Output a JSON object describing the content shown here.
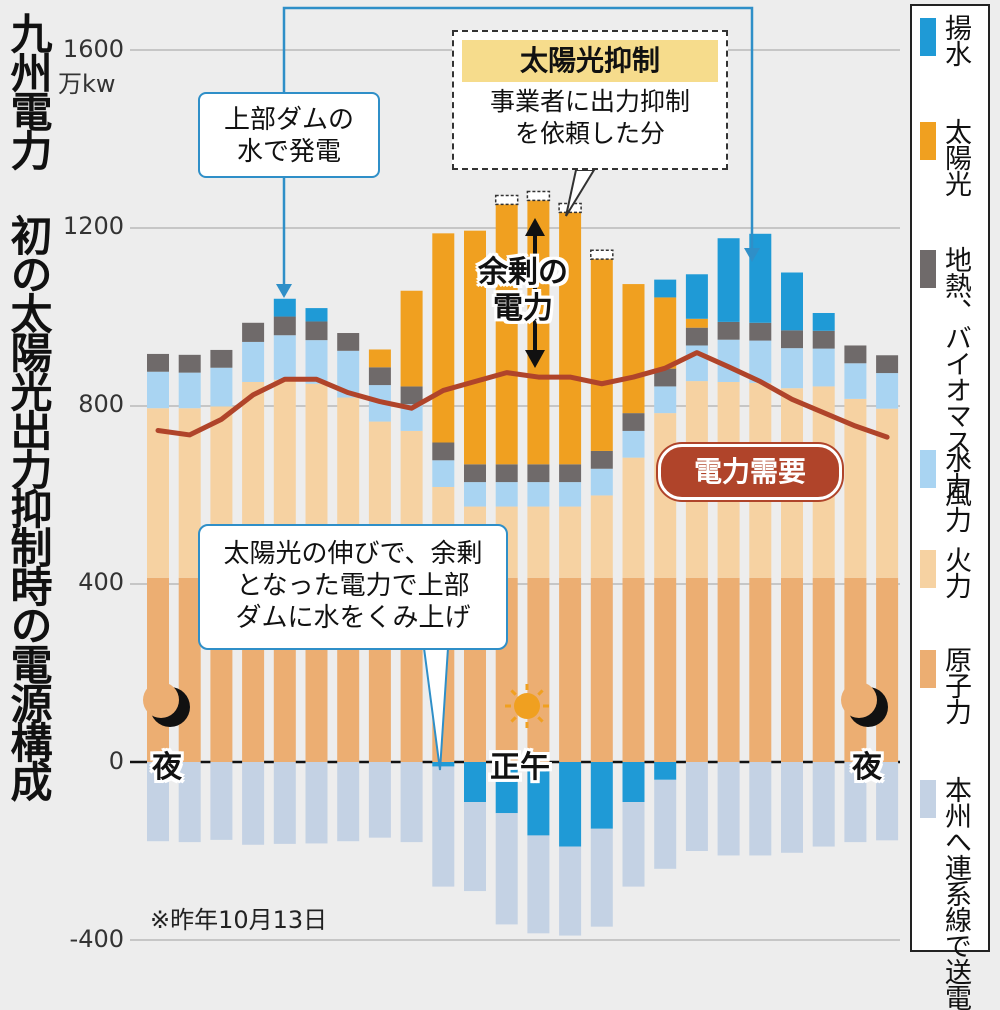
{
  "title": "九州電力 初の太陽光出力抑制時の電源構成",
  "y_unit": "万kw",
  "y_ticks": [
    "1600",
    "1200",
    "800",
    "400",
    "0",
    "-400"
  ],
  "legend": [
    {
      "label": "揚水",
      "color": "#1f9ad6"
    },
    {
      "label": "太陽光",
      "color": "#f0a020"
    },
    {
      "label": "地熱、バイオマス、風力",
      "color": "#6f6a6a"
    },
    {
      "label": "水力",
      "color": "#a9d4f2"
    },
    {
      "label": "火力",
      "color": "#f6d2a2"
    },
    {
      "label": "原子力",
      "color": "#ecae72"
    },
    {
      "label": "本州へ連系線で送電",
      "color": "#c4d2e4"
    }
  ],
  "annotations": {
    "pumped_top": "上部ダムの\n水で発電",
    "curtail_title": "太陽光抑制",
    "curtail_body": "事業者に出力抑制\nを依頼した分",
    "surplus": "余剰の\n電力",
    "demand": "電力需要",
    "pump_up": "太陽光の伸びで、余剰\nとなった電力で上部\nダムに水をくみ上げ",
    "night_left": "夜",
    "noon": "正午",
    "night_right": "夜",
    "note": "※昨年10月13日"
  },
  "chart_data": {
    "type": "bar",
    "subtype": "stacked",
    "x": [
      "0",
      "1",
      "2",
      "3",
      "4",
      "5",
      "6",
      "7",
      "8",
      "9",
      "10",
      "11",
      "12",
      "13",
      "14",
      "15",
      "16",
      "17",
      "18",
      "19",
      "20",
      "21",
      "22",
      "23"
    ],
    "ylim": [
      -400,
      1600
    ],
    "y_unit": "万kw",
    "series": [
      {
        "name": "原子力",
        "color": "#ecae72",
        "values": [
          414,
          414,
          414,
          414,
          414,
          414,
          414,
          414,
          414,
          414,
          414,
          414,
          414,
          414,
          414,
          414,
          414,
          414,
          414,
          414,
          414,
          414,
          414,
          414
        ]
      },
      {
        "name": "火力",
        "color": "#f6d2a2",
        "values": [
          381,
          381,
          385,
          440,
          445,
          436,
          405,
          351,
          330,
          204,
          160,
          160,
          160,
          160,
          185,
          270,
          370,
          442,
          440,
          438,
          426,
          430,
          402,
          380
        ]
      },
      {
        "name": "水力",
        "color": "#a9d4f2",
        "values": [
          82,
          80,
          87,
          90,
          100,
          98,
          105,
          82,
          60,
          60,
          55,
          55,
          55,
          55,
          60,
          60,
          60,
          80,
          95,
          95,
          90,
          85,
          80,
          80
        ]
      },
      {
        "name": "地熱、バイオマス、風力",
        "color": "#6f6a6a",
        "values": [
          40,
          40,
          40,
          43,
          42,
          42,
          40,
          40,
          40,
          40,
          40,
          40,
          40,
          40,
          40,
          40,
          40,
          40,
          40,
          40,
          40,
          40,
          40,
          40
        ]
      },
      {
        "name": "太陽光",
        "color": "#f0a020",
        "values": [
          0,
          0,
          0,
          0,
          0,
          0,
          0,
          40,
          215,
          470,
          525,
          584,
          593,
          566,
          431,
          290,
          160,
          20,
          0,
          0,
          0,
          0,
          0,
          0
        ]
      },
      {
        "name": "揚水",
        "color": "#1f9ad6",
        "values": [
          0,
          0,
          0,
          0,
          40,
          30,
          0,
          0,
          0,
          0,
          0,
          0,
          0,
          0,
          0,
          0,
          40,
          100,
          188,
          200,
          130,
          40,
          0,
          0
        ]
      },
      {
        "name": "太陽光抑制",
        "color": "#ffffff",
        "values": [
          0,
          0,
          0,
          0,
          0,
          0,
          0,
          0,
          0,
          0,
          0,
          20,
          20,
          20,
          20,
          0,
          0,
          0,
          0,
          0,
          0,
          0,
          0,
          0
        ]
      },
      {
        "name": "揚水",
        "color": "#1f9ad6",
        "values": [
          0,
          0,
          0,
          0,
          0,
          0,
          0,
          0,
          0,
          -10,
          -90,
          -115,
          -165,
          -190,
          -150,
          -90,
          -40,
          0,
          0,
          0,
          0,
          0,
          0,
          0
        ]
      },
      {
        "name": "本州へ連系線で送電",
        "color": "#c4d2e4",
        "values": [
          -178,
          -180,
          -175,
          -186,
          -184,
          -183,
          -178,
          -170,
          -180,
          -270,
          -200,
          -250,
          -220,
          -200,
          -220,
          -190,
          -200,
          -200,
          -210,
          -210,
          -204,
          -190,
          -180,
          -176
        ]
      }
    ],
    "lines": [
      {
        "name": "電力需要",
        "color": "#b0442a",
        "values": [
          745,
          735,
          770,
          825,
          860,
          860,
          830,
          810,
          795,
          835,
          855,
          875,
          865,
          865,
          850,
          865,
          885,
          920,
          888,
          855,
          815,
          785,
          755,
          730
        ]
      }
    ]
  }
}
